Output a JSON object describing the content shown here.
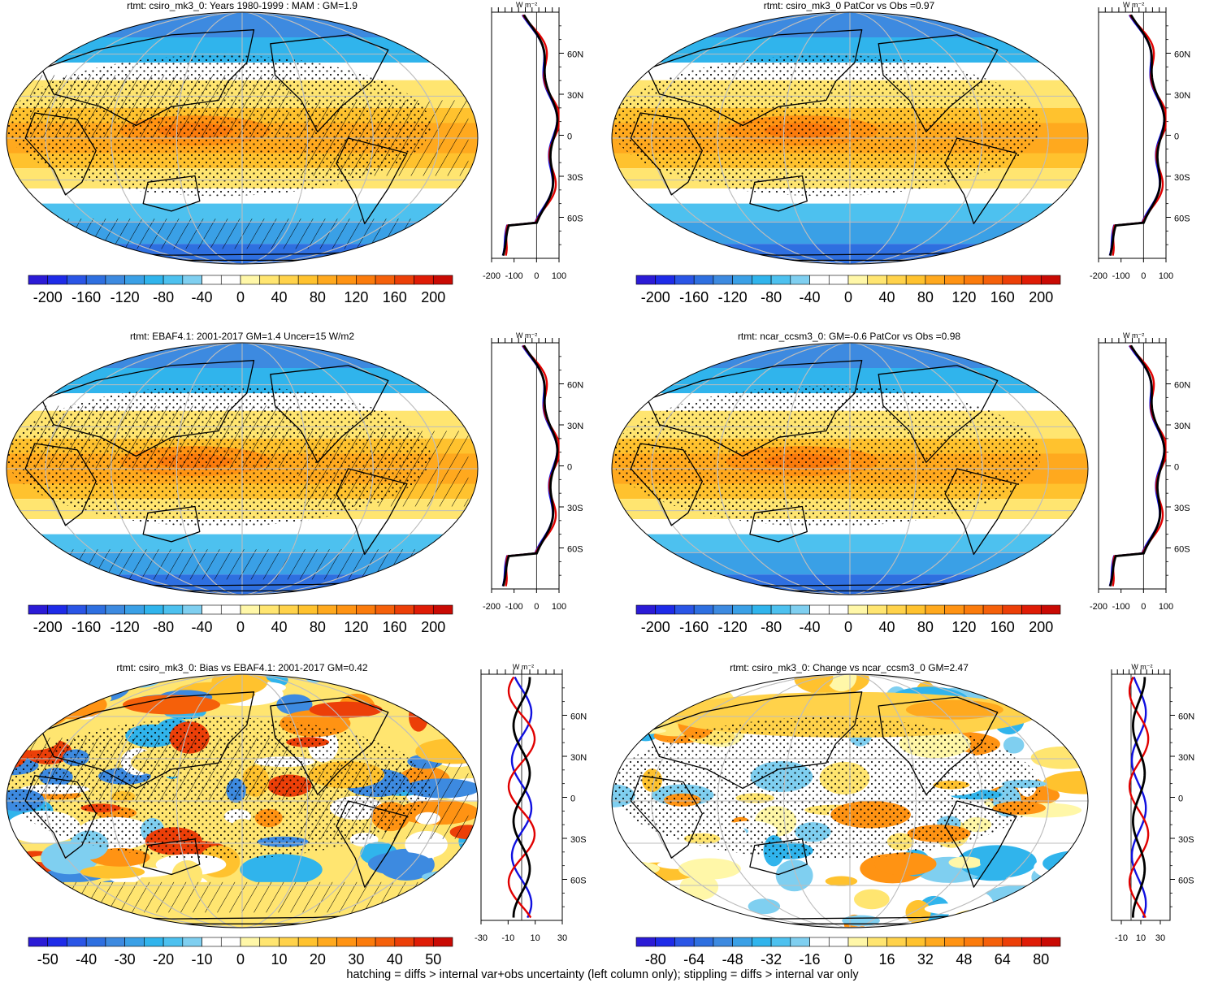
{
  "footer_note": "hatching = diffs > internal var+obs uncertainty (left column only); stippling = diffs > internal var only",
  "zonal_axis_unit": "W m⁻²",
  "latitude_ticks": [
    "60N",
    "30N",
    "0",
    "30S",
    "60S"
  ],
  "colors": {
    "model": "#e00000",
    "obs": "#1010e0",
    "mean": "#000000",
    "land": "#000000",
    "grid": "#bdbdbd"
  },
  "chart_data": [
    {
      "type": "heatmap",
      "title": "rtmt: csiro_mk3_0: Years 1980-1999 : MAM : GM=1.9",
      "colorbar": {
        "min": -220,
        "max": 220,
        "labels": [
          "-200",
          "-160",
          "-120",
          "-80",
          "-40",
          "0",
          "40",
          "80",
          "120",
          "160",
          "200"
        ]
      },
      "zonal_mean": {
        "xlim": [
          -200,
          100
        ],
        "xticks": [
          "-200",
          "-100",
          "0",
          "100"
        ]
      }
    },
    {
      "type": "heatmap",
      "title": "rtmt: csiro_mk3_0 PatCor vs Obs =0.97",
      "colorbar": {
        "min": -220,
        "max": 220,
        "labels": [
          "-200",
          "-160",
          "-120",
          "-80",
          "-40",
          "0",
          "40",
          "80",
          "120",
          "160",
          "200"
        ]
      },
      "zonal_mean": {
        "xlim": [
          -200,
          100
        ],
        "xticks": [
          "-200",
          "-100",
          "0",
          "100"
        ]
      }
    },
    {
      "type": "heatmap",
      "title": "rtmt: EBAF4.1: 2001-2017 GM=1.4 Uncer=15 W/m2",
      "colorbar": {
        "min": -220,
        "max": 220,
        "labels": [
          "-200",
          "-160",
          "-120",
          "-80",
          "-40",
          "0",
          "40",
          "80",
          "120",
          "160",
          "200"
        ]
      },
      "zonal_mean": {
        "xlim": [
          -200,
          100
        ],
        "xticks": [
          "-200",
          "-100",
          "0",
          "100"
        ]
      }
    },
    {
      "type": "heatmap",
      "title": "rtmt: ncar_ccsm3_0: GM=-0.6 PatCor vs Obs =0.98",
      "colorbar": {
        "min": -220,
        "max": 220,
        "labels": [
          "-200",
          "-160",
          "-120",
          "-80",
          "-40",
          "0",
          "40",
          "80",
          "120",
          "160",
          "200"
        ]
      },
      "zonal_mean": {
        "xlim": [
          -200,
          100
        ],
        "xticks": [
          "-200",
          "-100",
          "0",
          "100"
        ]
      }
    },
    {
      "type": "heatmap",
      "title": "rtmt: csiro_mk3_0: Bias vs EBAF4.1: 2001-2017 GM=0.42",
      "colorbar": {
        "min": -55,
        "max": 55,
        "labels": [
          "-50",
          "-40",
          "-30",
          "-20",
          "-10",
          "0",
          "10",
          "20",
          "30",
          "40",
          "50"
        ]
      },
      "zonal_mean": {
        "xlim": [
          -30,
          30
        ],
        "xticks": [
          "-30",
          "-10",
          "10",
          "30"
        ]
      }
    },
    {
      "type": "heatmap",
      "title": "rtmt: csiro_mk3_0: Change vs ncar_ccsm3_0 GM=2.47",
      "colorbar": {
        "min": -88,
        "max": 88,
        "labels": [
          "-80",
          "-64",
          "-48",
          "-32",
          "-16",
          "0",
          "16",
          "32",
          "48",
          "64",
          "80"
        ]
      },
      "zonal_mean": {
        "xlim": [
          -20,
          40
        ],
        "xticks": [
          "-10",
          "10",
          "30"
        ]
      }
    }
  ]
}
